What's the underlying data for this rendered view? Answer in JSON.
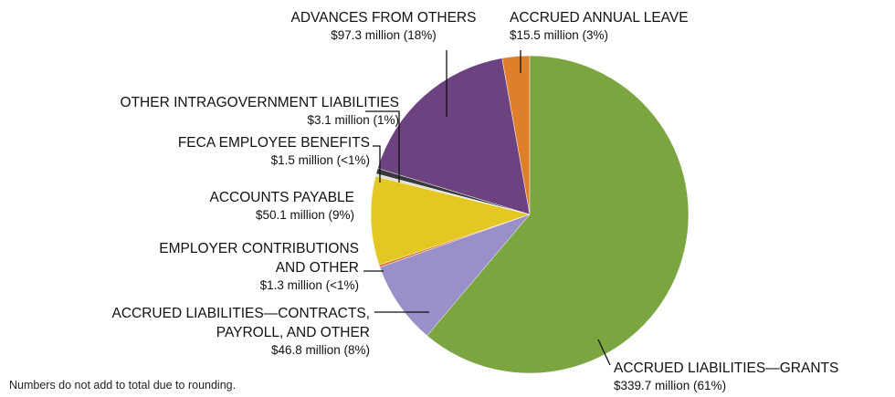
{
  "chart_data": {
    "type": "pie",
    "categories": [
      "ACCRUED LIABILITIES—GRANTS",
      "ACCRUED LIABILITIES—CONTRACTS,\nPAYROLL, AND OTHER",
      "EMPLOYER CONTRIBUTIONS\nAND OTHER",
      "ACCOUNTS PAYABLE",
      "FECA EMPLOYEE BENEFITS",
      "OTHER INTRAGOVERNMENT LIABILITIES",
      "ADVANCES FROM OTHERS",
      "ACCRUED ANNUAL LEAVE"
    ],
    "values": [
      339.7,
      46.8,
      1.3,
      50.1,
      1.5,
      3.1,
      97.3,
      15.5
    ],
    "value_labels": [
      "$339.7 million (61%)",
      "$46.8 million (8%)",
      "$1.3 million (<1%)",
      "$50.1 million (9%)",
      "$1.5 million (<1%)",
      "$3.1 million (1%)",
      "$97.3 million (18%)",
      "$15.5 million (3%)"
    ],
    "colors": [
      "#7ba541",
      "#9990c9",
      "#d9742a",
      "#e3c824",
      "#dcdcdc",
      "#3a3a3a",
      "#6d4280",
      "#df7f2b"
    ],
    "note": "Numbers do not add to total due to rounding."
  }
}
